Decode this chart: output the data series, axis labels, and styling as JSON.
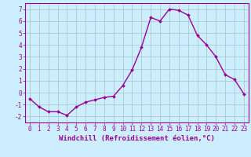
{
  "x": [
    0,
    1,
    2,
    3,
    4,
    5,
    6,
    7,
    8,
    9,
    10,
    11,
    12,
    13,
    14,
    15,
    16,
    17,
    18,
    19,
    20,
    21,
    22,
    23
  ],
  "y": [
    -0.5,
    -1.2,
    -1.6,
    -1.6,
    -1.9,
    -1.2,
    -0.8,
    -0.6,
    -0.4,
    -0.3,
    0.6,
    1.9,
    3.8,
    6.3,
    6.0,
    7.0,
    6.9,
    6.5,
    4.8,
    4.0,
    3.0,
    1.5,
    1.1,
    -0.1
  ],
  "line_color": "#990099",
  "marker": "D",
  "marker_size": 2.0,
  "bg_color": "#cceeff",
  "grid_color": "#aacccc",
  "xlabel": "Windchill (Refroidissement éolien,°C)",
  "xlim": [
    -0.5,
    23.5
  ],
  "ylim": [
    -2.5,
    7.5
  ],
  "yticks": [
    -2,
    -1,
    0,
    1,
    2,
    3,
    4,
    5,
    6,
    7
  ],
  "xticks": [
    0,
    1,
    2,
    3,
    4,
    5,
    6,
    7,
    8,
    9,
    10,
    11,
    12,
    13,
    14,
    15,
    16,
    17,
    18,
    19,
    20,
    21,
    22,
    23
  ],
  "tick_color": "#990099",
  "label_color": "#990099",
  "axis_color": "#990099",
  "xlabel_fontsize": 6.5,
  "tick_fontsize": 5.5,
  "linewidth": 1.0
}
